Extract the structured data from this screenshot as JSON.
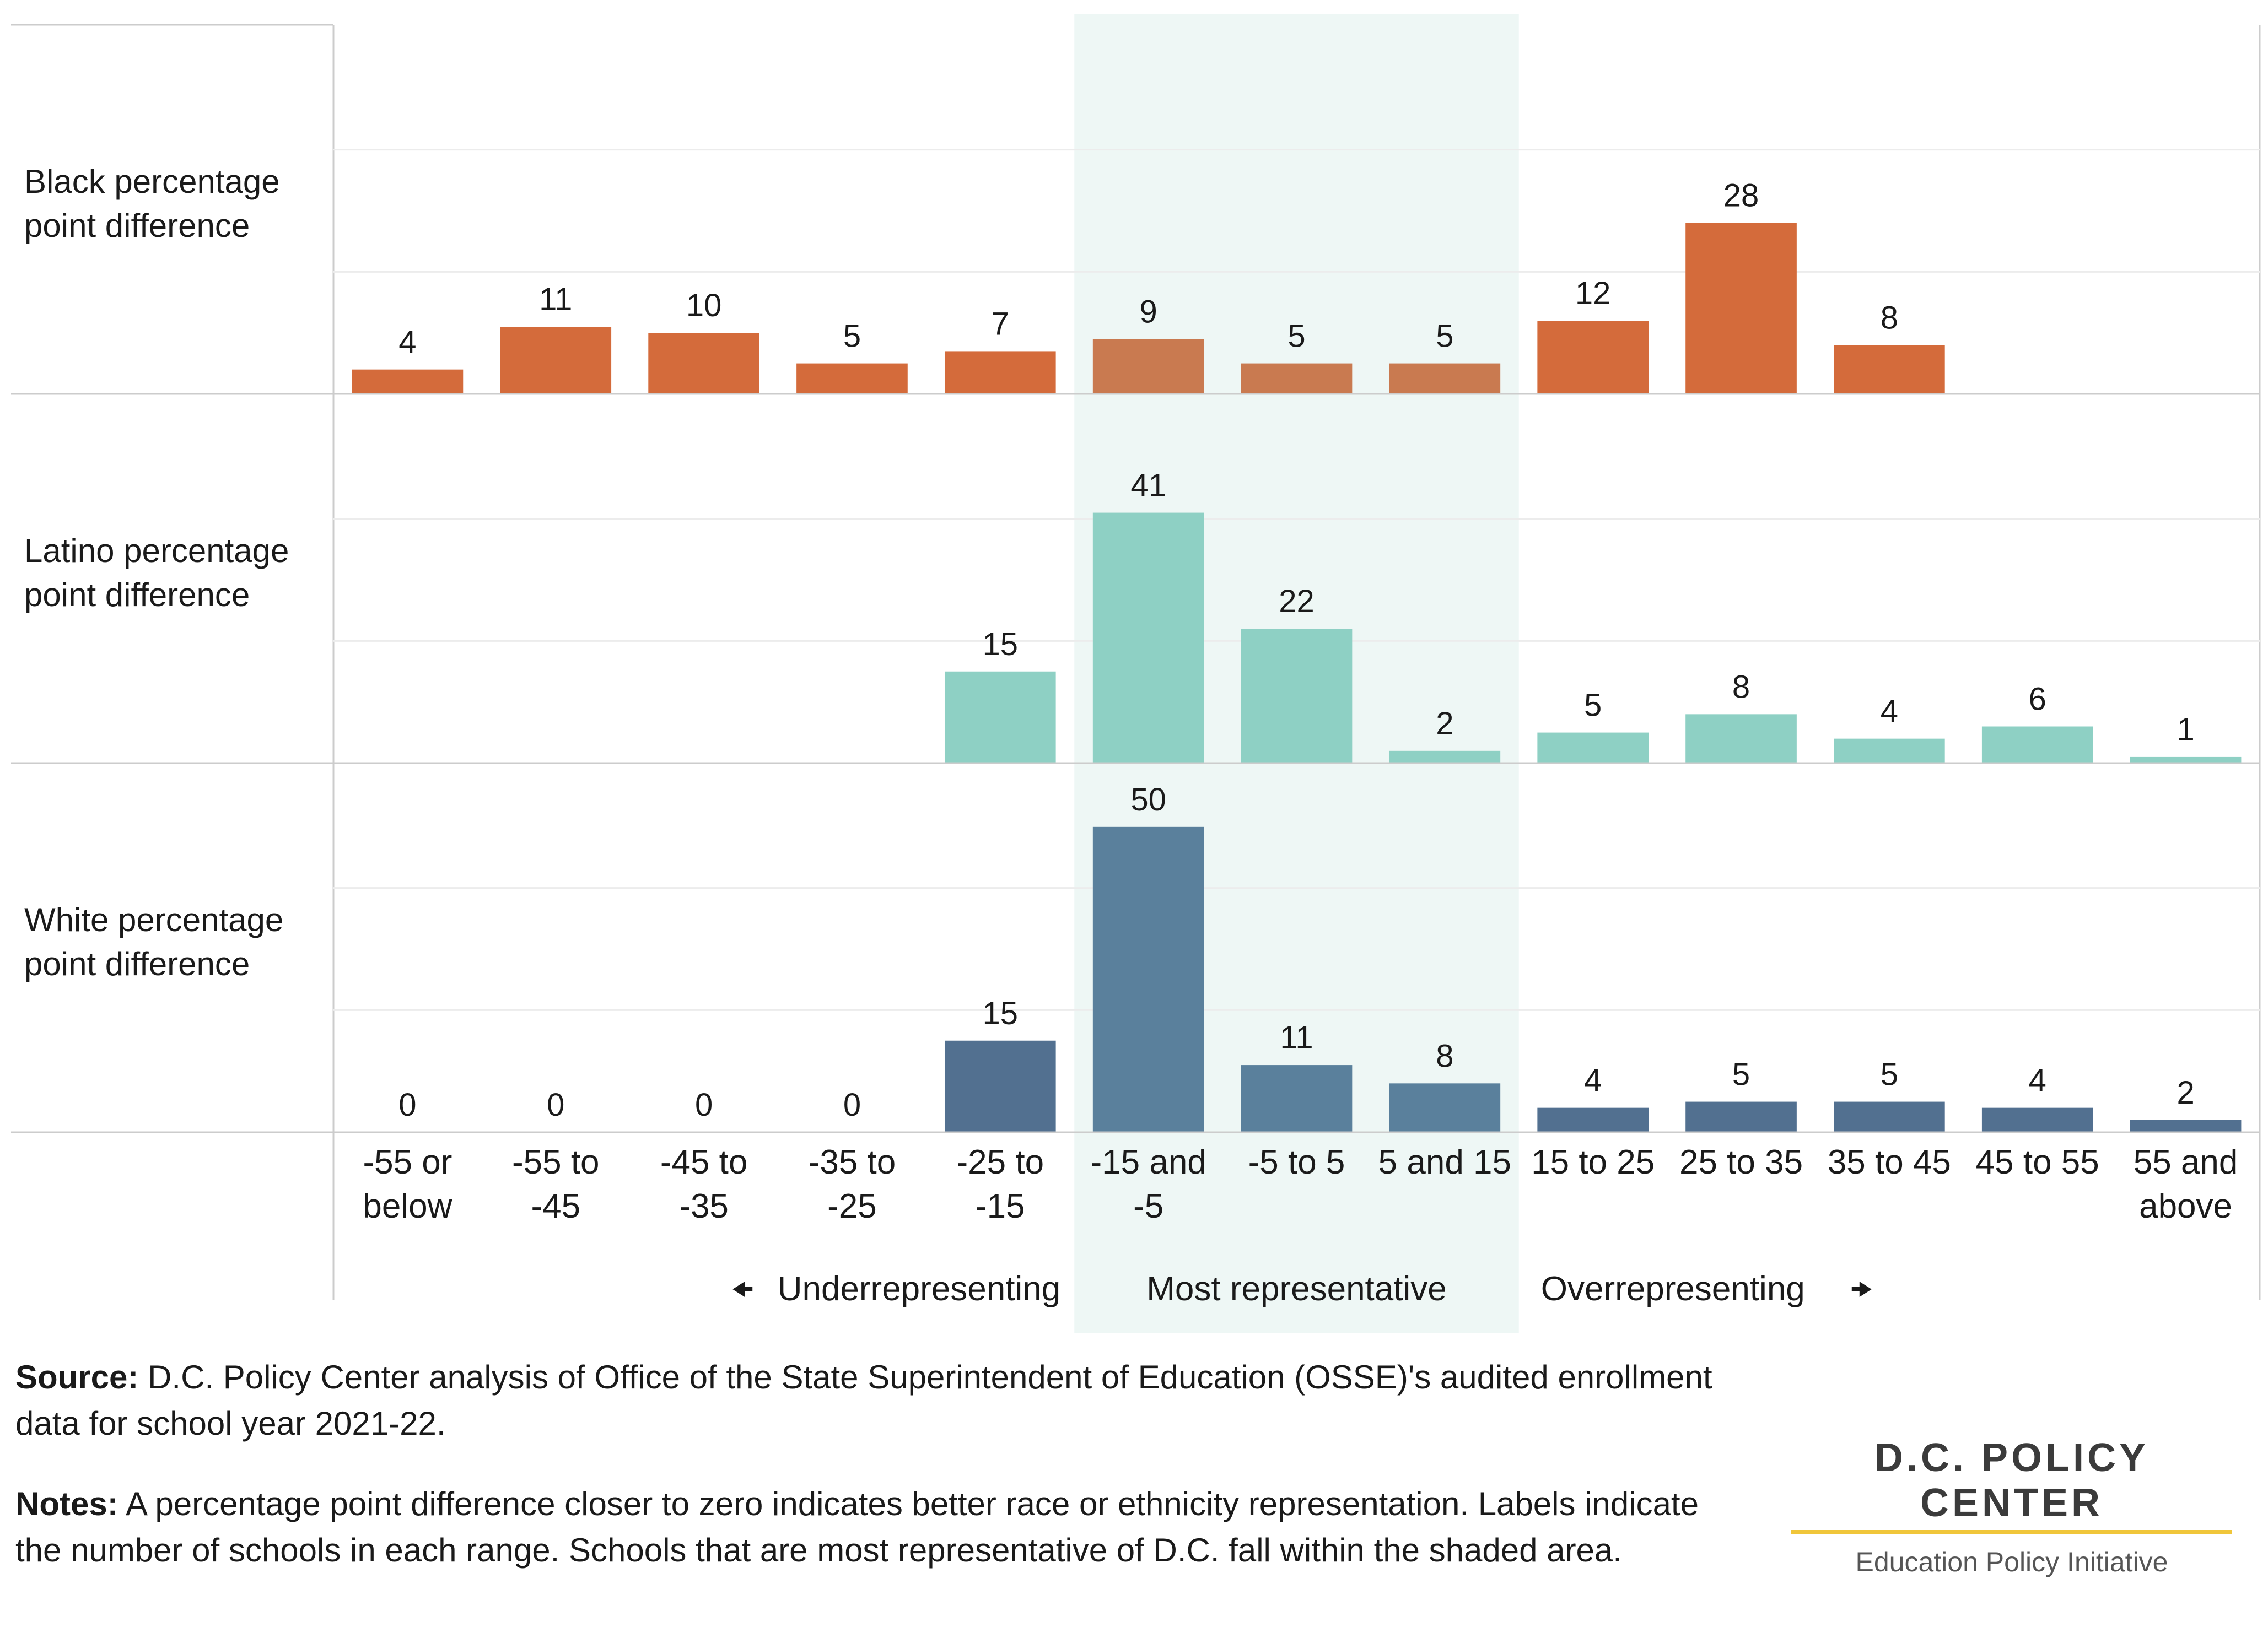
{
  "chart_data": {
    "type": "bar",
    "categories": [
      [
        "-55 or",
        "below"
      ],
      [
        "-55 to",
        "-45"
      ],
      [
        "-45 to",
        "-35"
      ],
      [
        "-35 to",
        "-25"
      ],
      [
        "-25 to",
        "-15"
      ],
      [
        "-15 and",
        "-5"
      ],
      [
        "-5 to 5"
      ],
      [
        "5 and 15"
      ],
      [
        "15 to 25"
      ],
      [
        "25 to 35"
      ],
      [
        "35 to 45"
      ],
      [
        "45 to 55"
      ],
      [
        "55 and",
        "above"
      ]
    ],
    "series": [
      {
        "label_lines": [
          "Black percentage",
          "point difference"
        ],
        "values": [
          4,
          11,
          10,
          5,
          7,
          9,
          5,
          5,
          12,
          28,
          8,
          null,
          null
        ],
        "color": "#d46b3b",
        "shaded_color": "#c97a50",
        "ymax": 60
      },
      {
        "label_lines": [
          "Latino percentage",
          "point difference"
        ],
        "values": [
          null,
          null,
          null,
          null,
          15,
          41,
          22,
          2,
          5,
          8,
          4,
          6,
          1
        ],
        "color": "#8ed0c4",
        "shaded_color": "#8ed0c4",
        "ymax": 60
      },
      {
        "label_lines": [
          "White percentage",
          "point difference"
        ],
        "values": [
          0,
          0,
          0,
          0,
          15,
          50,
          11,
          8,
          4,
          5,
          5,
          4,
          2
        ],
        "color": "#527090",
        "shaded_color": "#5a809c",
        "ymax": 60
      }
    ],
    "shaded_categories": [
      5,
      6,
      7
    ],
    "shading_color": "#eef7f5",
    "region_labels": {
      "under": "Underrepresenting",
      "most": "Most representative",
      "over": "Overrepresenting"
    },
    "gridlines": true
  },
  "footer": {
    "source_label": "Source:",
    "source_text": "D.C. Policy Center analysis of Office of the State Superintendent of Education (OSSE)'s audited enrollment data for school year 2021-22.",
    "notes_label": "Notes:",
    "notes_text": "A percentage point difference closer to zero indicates better race or ethnicity representation. Labels indicate the number of schools in each range. Schools that are most representative of D.C. fall within the shaded area."
  },
  "logo": {
    "title": "D.C. POLICY CENTER",
    "subtitle": "Education Policy Initiative"
  }
}
